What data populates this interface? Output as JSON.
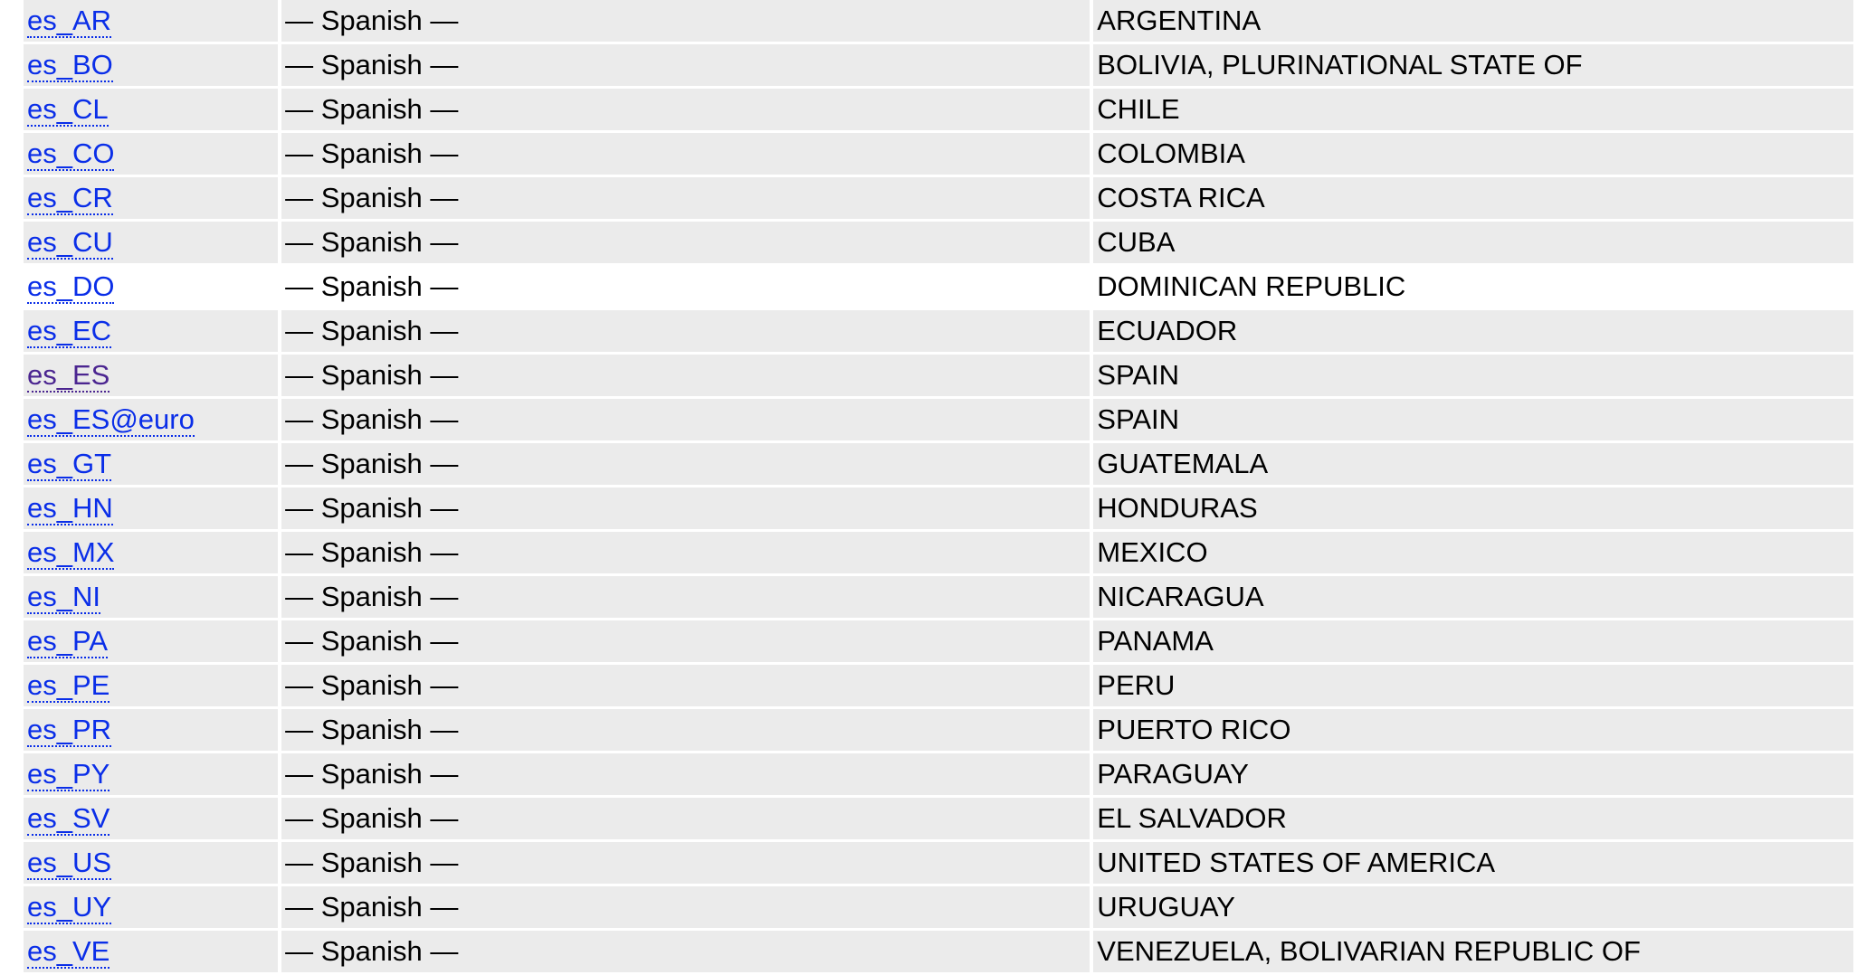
{
  "colors": {
    "link": "#0a2ee8",
    "visited_link": "#4b2590",
    "cell_background": "#ebebeb"
  },
  "rows": [
    {
      "code": "es_AR",
      "language": "— Spanish —",
      "country": "ARGENTINA"
    },
    {
      "code": "es_BO",
      "language": "— Spanish —",
      "country": "BOLIVIA, PLURINATIONAL STATE OF"
    },
    {
      "code": "es_CL",
      "language": "— Spanish —",
      "country": "CHILE"
    },
    {
      "code": "es_CO",
      "language": "— Spanish —",
      "country": "COLOMBIA"
    },
    {
      "code": "es_CR",
      "language": "— Spanish —",
      "country": "COSTA RICA"
    },
    {
      "code": "es_CU",
      "language": "— Spanish —",
      "country": "CUBA"
    },
    {
      "code": "es_DO",
      "language": "— Spanish —",
      "country": "DOMINICAN REPUBLIC",
      "highlighted": true
    },
    {
      "code": "es_EC",
      "language": "— Spanish —",
      "country": "ECUADOR"
    },
    {
      "code": "es_ES",
      "language": "— Spanish —",
      "country": "SPAIN",
      "visited": true
    },
    {
      "code": "es_ES@euro",
      "language": "— Spanish —",
      "country": "SPAIN"
    },
    {
      "code": "es_GT",
      "language": "— Spanish —",
      "country": "GUATEMALA"
    },
    {
      "code": "es_HN",
      "language": "— Spanish —",
      "country": "HONDURAS"
    },
    {
      "code": "es_MX",
      "language": "— Spanish —",
      "country": "MEXICO"
    },
    {
      "code": "es_NI",
      "language": "— Spanish —",
      "country": "NICARAGUA"
    },
    {
      "code": "es_PA",
      "language": "— Spanish —",
      "country": "PANAMA"
    },
    {
      "code": "es_PE",
      "language": "— Spanish —",
      "country": "PERU"
    },
    {
      "code": "es_PR",
      "language": "— Spanish —",
      "country": "PUERTO RICO"
    },
    {
      "code": "es_PY",
      "language": "— Spanish —",
      "country": "PARAGUAY"
    },
    {
      "code": "es_SV",
      "language": "— Spanish —",
      "country": "EL SALVADOR"
    },
    {
      "code": "es_US",
      "language": "— Spanish —",
      "country": "UNITED STATES OF AMERICA"
    },
    {
      "code": "es_UY",
      "language": "— Spanish —",
      "country": "URUGUAY"
    },
    {
      "code": "es_VE",
      "language": "— Spanish —",
      "country": "VENEZUELA, BOLIVARIAN REPUBLIC OF"
    }
  ]
}
